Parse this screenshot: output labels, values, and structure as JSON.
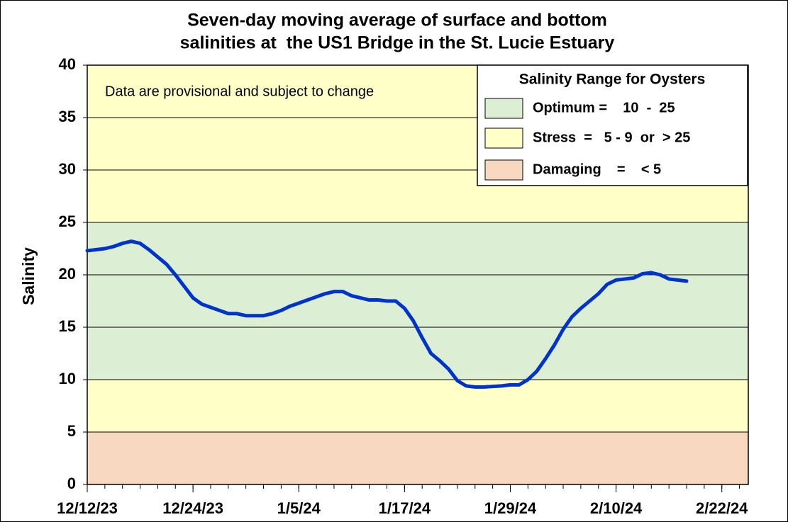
{
  "chart_data": {
    "type": "line",
    "title": [
      "Seven-day moving average of surface and bottom",
      "salinities at  the US1 Bridge in the St. Lucie Estuary"
    ],
    "ylabel": "Salinity",
    "annotation": "Data are provisional and subject to change",
    "legend_title": "Salinity Range for Oysters",
    "bands": [
      {
        "label": "Optimum =    10  -  25",
        "color": "#dcefd4",
        "ranges": [
          [
            10,
            25
          ]
        ]
      },
      {
        "label": "Stress  =   5 - 9  or  > 25",
        "color": "#ffffc8",
        "ranges": [
          [
            5,
            10
          ],
          [
            25,
            40
          ]
        ]
      },
      {
        "label": "Damaging    =    < 5",
        "color": "#f8d8c0",
        "ranges": [
          [
            0,
            5
          ]
        ]
      }
    ],
    "color": "#0033cc",
    "x": [
      "2023-12-12",
      "2023-12-13",
      "2023-12-14",
      "2023-12-15",
      "2023-12-16",
      "2023-12-17",
      "2023-12-18",
      "2023-12-19",
      "2023-12-20",
      "2023-12-21",
      "2023-12-22",
      "2023-12-23",
      "2023-12-24",
      "2023-12-25",
      "2023-12-26",
      "2023-12-27",
      "2023-12-28",
      "2023-12-29",
      "2023-12-30",
      "2023-12-31",
      "2024-01-01",
      "2024-01-02",
      "2024-01-03",
      "2024-01-04",
      "2024-01-05",
      "2024-01-06",
      "2024-01-07",
      "2024-01-08",
      "2024-01-09",
      "2024-01-10",
      "2024-01-11",
      "2024-01-12",
      "2024-01-13",
      "2024-01-14",
      "2024-01-15",
      "2024-01-16",
      "2024-01-17",
      "2024-01-18",
      "2024-01-19",
      "2024-01-20",
      "2024-01-21",
      "2024-01-22",
      "2024-01-23",
      "2024-01-24",
      "2024-01-25",
      "2024-01-26",
      "2024-01-27",
      "2024-01-28",
      "2024-01-29",
      "2024-01-30",
      "2024-01-31",
      "2024-02-01",
      "2024-02-02",
      "2024-02-03",
      "2024-02-04",
      "2024-02-05",
      "2024-02-06",
      "2024-02-07",
      "2024-02-08",
      "2024-02-09",
      "2024-02-10",
      "2024-02-11",
      "2024-02-12",
      "2024-02-13",
      "2024-02-14",
      "2024-02-15",
      "2024-02-16",
      "2024-02-17",
      "2024-02-18"
    ],
    "values": [
      22.3,
      22.4,
      22.5,
      22.7,
      23.0,
      23.2,
      23.0,
      22.4,
      21.7,
      21.0,
      20.0,
      18.9,
      17.8,
      17.2,
      16.9,
      16.6,
      16.3,
      16.3,
      16.1,
      16.1,
      16.1,
      16.3,
      16.6,
      17.0,
      17.3,
      17.6,
      17.9,
      18.2,
      18.4,
      18.4,
      18.0,
      17.8,
      17.6,
      17.6,
      17.5,
      17.5,
      16.8,
      15.6,
      14.0,
      12.5,
      11.8,
      11.0,
      9.9,
      9.4,
      9.3,
      9.3,
      9.35,
      9.4,
      9.5,
      9.5,
      10.0,
      10.8,
      12.0,
      13.3,
      14.8,
      16.0,
      16.8,
      17.5,
      18.2,
      19.1,
      19.5,
      19.6,
      19.7,
      20.1,
      20.2,
      20.0,
      19.6,
      19.5,
      19.4
    ],
    "xlim": [
      "2023-12-12",
      "2024-02-25"
    ],
    "xticks": [
      {
        "value": "2023-12-12",
        "label": "12/12/23"
      },
      {
        "value": "2023-12-24",
        "label": "12/24/23"
      },
      {
        "value": "2024-01-05",
        "label": "1/5/24"
      },
      {
        "value": "2024-01-17",
        "label": "1/17/24"
      },
      {
        "value": "2024-01-29",
        "label": "1/29/24"
      },
      {
        "value": "2024-02-10",
        "label": "2/10/24"
      },
      {
        "value": "2024-02-22",
        "label": "2/22/24"
      }
    ],
    "ylim": [
      0,
      40
    ],
    "yticks": [
      0,
      5,
      10,
      15,
      20,
      25,
      30,
      35,
      40
    ],
    "grid": true
  }
}
